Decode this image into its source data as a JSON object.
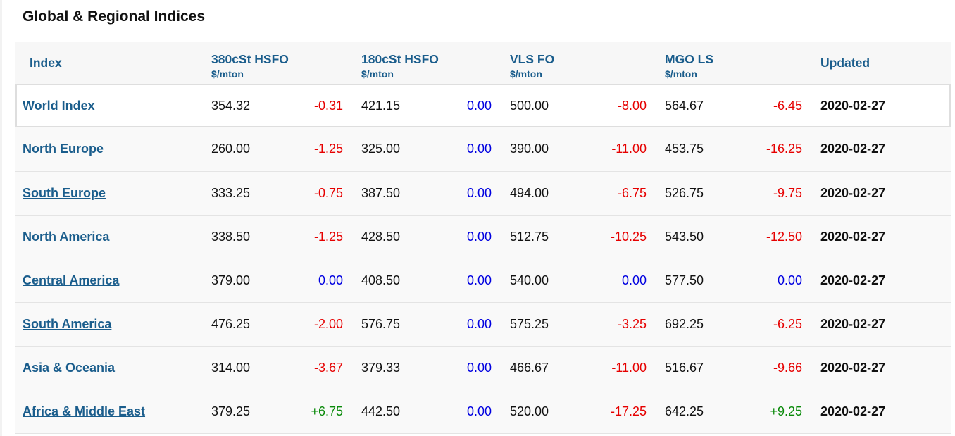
{
  "panel": {
    "title": "Global & Regional Indices"
  },
  "table": {
    "headers": {
      "index": "Index",
      "hsfo380": {
        "label": "380cSt HSFO",
        "unit": "$/mton"
      },
      "hsfo180": {
        "label": "180cSt HSFO",
        "unit": "$/mton"
      },
      "vlsfo": {
        "label": "VLS FO",
        "unit": "$/mton"
      },
      "mgols": {
        "label": "MGO LS",
        "unit": "$/mton"
      },
      "updated": "Updated"
    },
    "rows": [
      {
        "name": "World Index",
        "hsfo380": "354.32",
        "hsfo380_chg": "-0.31",
        "hsfo180": "421.15",
        "hsfo180_chg": "0.00",
        "vlsfo": "500.00",
        "vlsfo_chg": "-8.00",
        "mgols": "564.67",
        "mgols_chg": "-6.45",
        "updated": "2020-02-27"
      },
      {
        "name": "North Europe",
        "hsfo380": "260.00",
        "hsfo380_chg": "-1.25",
        "hsfo180": "325.00",
        "hsfo180_chg": "0.00",
        "vlsfo": "390.00",
        "vlsfo_chg": "-11.00",
        "mgols": "453.75",
        "mgols_chg": "-16.25",
        "updated": "2020-02-27"
      },
      {
        "name": "South Europe",
        "hsfo380": "333.25",
        "hsfo380_chg": "-0.75",
        "hsfo180": "387.50",
        "hsfo180_chg": "0.00",
        "vlsfo": "494.00",
        "vlsfo_chg": "-6.75",
        "mgols": "526.75",
        "mgols_chg": "-9.75",
        "updated": "2020-02-27"
      },
      {
        "name": "North America",
        "hsfo380": "338.50",
        "hsfo380_chg": "-1.25",
        "hsfo180": "428.50",
        "hsfo180_chg": "0.00",
        "vlsfo": "512.75",
        "vlsfo_chg": "-10.25",
        "mgols": "543.50",
        "mgols_chg": "-12.50",
        "updated": "2020-02-27"
      },
      {
        "name": "Central America",
        "hsfo380": "379.00",
        "hsfo380_chg": "0.00",
        "hsfo180": "408.50",
        "hsfo180_chg": "0.00",
        "vlsfo": "540.00",
        "vlsfo_chg": "0.00",
        "mgols": "577.50",
        "mgols_chg": "0.00",
        "updated": "2020-02-27"
      },
      {
        "name": "South America",
        "hsfo380": "476.25",
        "hsfo380_chg": "-2.00",
        "hsfo180": "576.75",
        "hsfo180_chg": "0.00",
        "vlsfo": "575.25",
        "vlsfo_chg": "-3.25",
        "mgols": "692.25",
        "mgols_chg": "-6.25",
        "updated": "2020-02-27"
      },
      {
        "name": "Asia & Oceania",
        "hsfo380": "314.00",
        "hsfo380_chg": "-3.67",
        "hsfo180": "379.33",
        "hsfo180_chg": "0.00",
        "vlsfo": "466.67",
        "vlsfo_chg": "-11.00",
        "mgols": "516.67",
        "mgols_chg": "-9.66",
        "updated": "2020-02-27"
      },
      {
        "name": "Africa & Middle East",
        "hsfo380": "379.25",
        "hsfo380_chg": "+6.75",
        "hsfo180": "442.50",
        "hsfo180_chg": "0.00",
        "vlsfo": "520.00",
        "vlsfo_chg": "-17.25",
        "mgols": "642.25",
        "mgols_chg": "+9.25",
        "updated": "2020-02-27"
      }
    ]
  },
  "colors": {
    "link": "#1a5d8c",
    "negative": "#e60000",
    "zero": "#0000e0",
    "positive": "#0a8a0a"
  }
}
